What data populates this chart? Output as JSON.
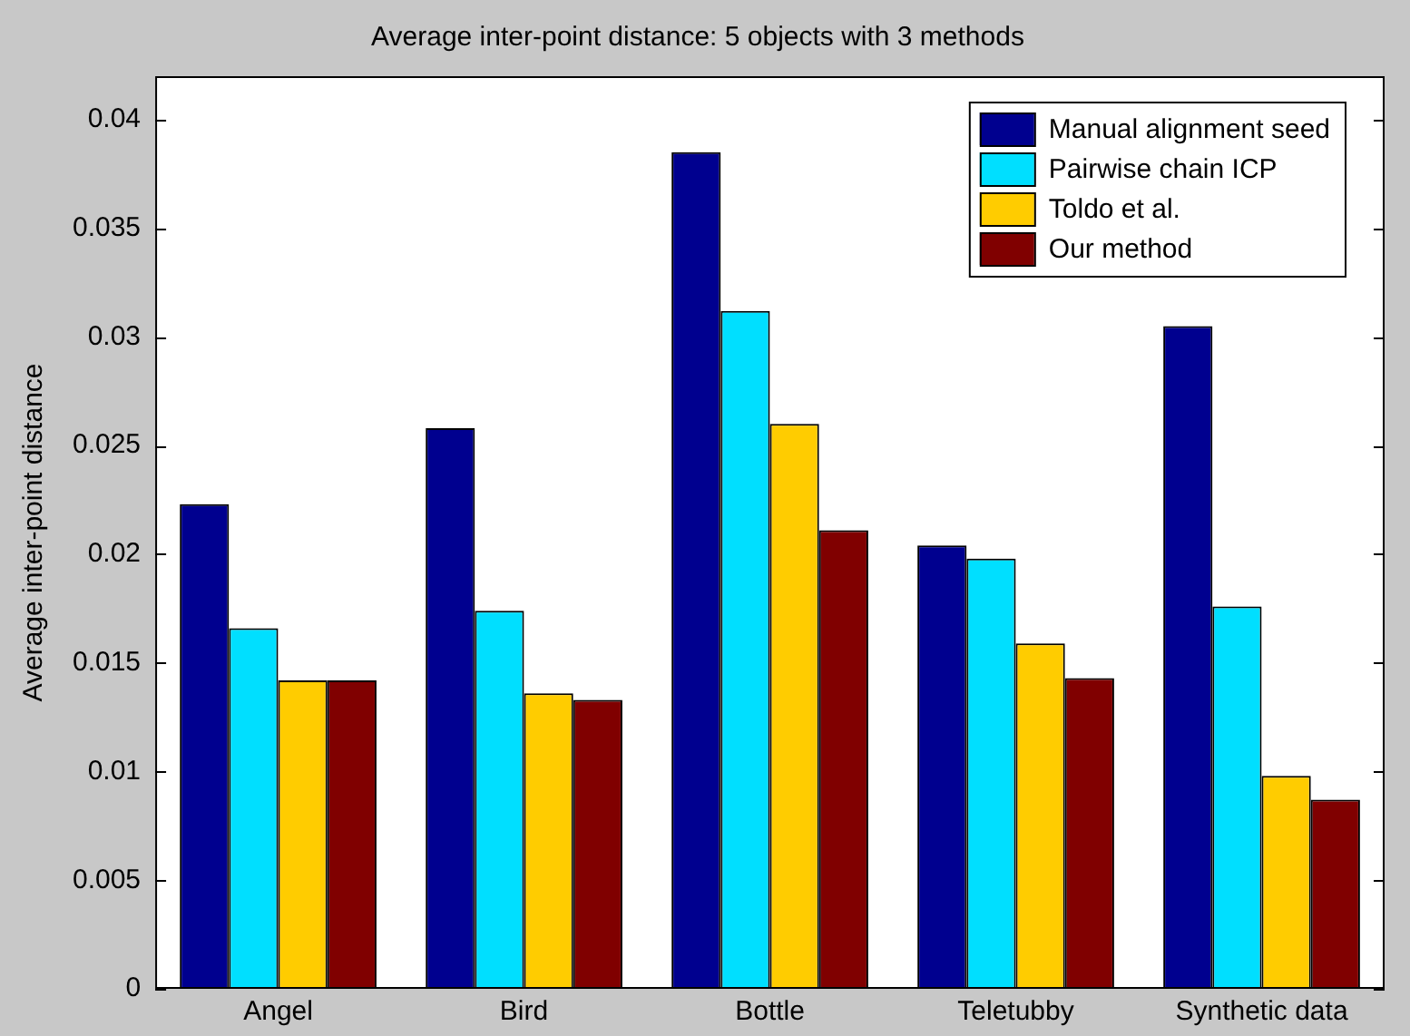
{
  "chart_data": {
    "type": "bar",
    "title": "Average inter-point distance: 5 objects with 3 methods",
    "ylabel": "Average inter-point distance",
    "categories": [
      "Angel",
      "Bird",
      "Bottle",
      "Teletubby",
      "Synthetic data"
    ],
    "series": [
      {
        "name": "Manual alignment seed",
        "color": "#00008f",
        "values": [
          0.0223,
          0.0258,
          0.0385,
          0.0204,
          0.0305
        ]
      },
      {
        "name": "Pairwise chain ICP",
        "color": "#00dfff",
        "values": [
          0.0166,
          0.0174,
          0.0312,
          0.0198,
          0.0176
        ]
      },
      {
        "name": "Toldo et al.",
        "color": "#ffcc00",
        "values": [
          0.0142,
          0.0136,
          0.026,
          0.0159,
          0.0098
        ]
      },
      {
        "name": "Our method",
        "color": "#800000",
        "values": [
          0.0142,
          0.0133,
          0.0211,
          0.0143,
          0.0087
        ]
      }
    ],
    "ylim": [
      0,
      0.042
    ],
    "yticks": [
      0,
      0.005,
      0.01,
      0.015,
      0.02,
      0.025,
      0.03,
      0.035,
      0.04
    ],
    "grid": false,
    "legend": "top right"
  }
}
